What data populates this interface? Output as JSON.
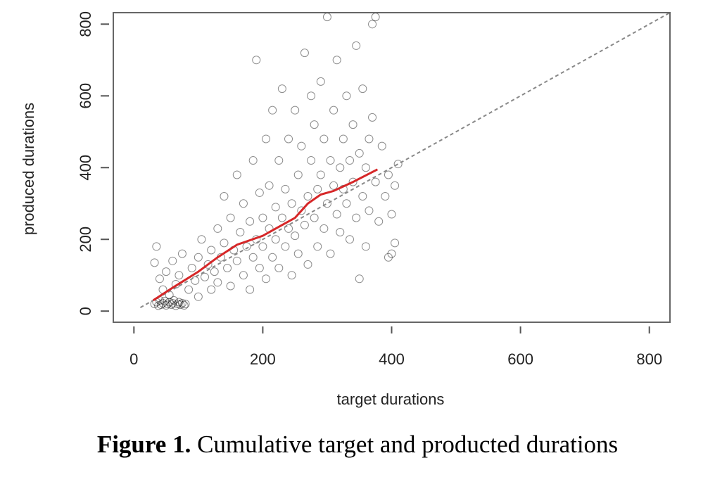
{
  "caption": {
    "label": "Figure 1.",
    "text": " Cumulative target and producted durations"
  },
  "chart_data": {
    "type": "scatter",
    "xlabel": "target durations",
    "ylabel": "produced durations",
    "xlim": [
      -32,
      832
    ],
    "ylim": [
      -31,
      832
    ],
    "xticks": [
      0,
      200,
      400,
      600,
      800
    ],
    "yticks": [
      0,
      200,
      400,
      600,
      800
    ],
    "grid": false,
    "colors": {
      "points": "#000000",
      "fit_line": "#d62728",
      "reference_line": "#888888"
    },
    "reference_line": {
      "type": "identity y=x",
      "x": [
        10,
        832
      ],
      "y": [
        10,
        832
      ],
      "style": "dashed"
    },
    "fit_line": {
      "x": [
        30,
        60,
        100,
        130,
        160,
        200,
        230,
        250,
        270,
        290,
        310,
        340,
        378
      ],
      "y": [
        30,
        65,
        110,
        150,
        185,
        210,
        240,
        260,
        300,
        325,
        335,
        360,
        395
      ]
    },
    "points": [
      [
        32,
        20
      ],
      [
        35,
        25
      ],
      [
        38,
        15
      ],
      [
        40,
        30
      ],
      [
        42,
        18
      ],
      [
        45,
        22
      ],
      [
        48,
        28
      ],
      [
        50,
        16
      ],
      [
        52,
        20
      ],
      [
        55,
        25
      ],
      [
        58,
        18
      ],
      [
        60,
        22
      ],
      [
        62,
        30
      ],
      [
        65,
        15
      ],
      [
        68,
        20
      ],
      [
        70,
        25
      ],
      [
        72,
        18
      ],
      [
        75,
        22
      ],
      [
        78,
        16
      ],
      [
        80,
        20
      ],
      [
        32,
        135
      ],
      [
        35,
        180
      ],
      [
        40,
        90
      ],
      [
        45,
        60
      ],
      [
        50,
        110
      ],
      [
        55,
        45
      ],
      [
        60,
        140
      ],
      [
        65,
        75
      ],
      [
        70,
        100
      ],
      [
        75,
        160
      ],
      [
        85,
        60
      ],
      [
        90,
        120
      ],
      [
        95,
        85
      ],
      [
        100,
        150
      ],
      [
        100,
        40
      ],
      [
        105,
        200
      ],
      [
        110,
        95
      ],
      [
        115,
        130
      ],
      [
        120,
        60
      ],
      [
        120,
        170
      ],
      [
        125,
        110
      ],
      [
        130,
        230
      ],
      [
        130,
        80
      ],
      [
        135,
        150
      ],
      [
        140,
        320
      ],
      [
        140,
        190
      ],
      [
        145,
        120
      ],
      [
        150,
        260
      ],
      [
        150,
        70
      ],
      [
        155,
        170
      ],
      [
        160,
        140
      ],
      [
        160,
        380
      ],
      [
        165,
        220
      ],
      [
        170,
        100
      ],
      [
        170,
        300
      ],
      [
        175,
        180
      ],
      [
        180,
        250
      ],
      [
        180,
        60
      ],
      [
        185,
        420
      ],
      [
        185,
        150
      ],
      [
        190,
        200
      ],
      [
        190,
        700
      ],
      [
        195,
        330
      ],
      [
        195,
        120
      ],
      [
        200,
        260
      ],
      [
        200,
        180
      ],
      [
        205,
        90
      ],
      [
        205,
        480
      ],
      [
        210,
        230
      ],
      [
        210,
        350
      ],
      [
        215,
        150
      ],
      [
        215,
        560
      ],
      [
        220,
        290
      ],
      [
        220,
        200
      ],
      [
        225,
        120
      ],
      [
        225,
        420
      ],
      [
        230,
        260
      ],
      [
        230,
        620
      ],
      [
        235,
        180
      ],
      [
        235,
        340
      ],
      [
        240,
        230
      ],
      [
        240,
        480
      ],
      [
        245,
        100
      ],
      [
        245,
        300
      ],
      [
        250,
        210
      ],
      [
        250,
        560
      ],
      [
        255,
        380
      ],
      [
        255,
        160
      ],
      [
        260,
        280
      ],
      [
        260,
        460
      ],
      [
        265,
        240
      ],
      [
        265,
        720
      ],
      [
        270,
        320
      ],
      [
        270,
        130
      ],
      [
        275,
        420
      ],
      [
        275,
        600
      ],
      [
        280,
        260
      ],
      [
        280,
        520
      ],
      [
        285,
        340
      ],
      [
        285,
        180
      ],
      [
        290,
        380
      ],
      [
        290,
        640
      ],
      [
        295,
        230
      ],
      [
        295,
        480
      ],
      [
        300,
        300
      ],
      [
        300,
        820
      ],
      [
        305,
        420
      ],
      [
        305,
        160
      ],
      [
        310,
        350
      ],
      [
        310,
        560
      ],
      [
        315,
        270
      ],
      [
        315,
        700
      ],
      [
        320,
        400
      ],
      [
        320,
        220
      ],
      [
        325,
        480
      ],
      [
        325,
        340
      ],
      [
        330,
        300
      ],
      [
        330,
        600
      ],
      [
        335,
        420
      ],
      [
        335,
        200
      ],
      [
        340,
        360
      ],
      [
        340,
        520
      ],
      [
        345,
        260
      ],
      [
        345,
        740
      ],
      [
        350,
        440
      ],
      [
        350,
        90
      ],
      [
        355,
        320
      ],
      [
        355,
        620
      ],
      [
        360,
        400
      ],
      [
        360,
        180
      ],
      [
        365,
        480
      ],
      [
        365,
        280
      ],
      [
        370,
        540
      ],
      [
        370,
        800
      ],
      [
        375,
        360
      ],
      [
        375,
        820
      ],
      [
        380,
        250
      ],
      [
        385,
        460
      ],
      [
        390,
        320
      ],
      [
        395,
        380
      ],
      [
        400,
        160
      ],
      [
        400,
        270
      ],
      [
        405,
        190
      ],
      [
        405,
        350
      ],
      [
        410,
        410
      ],
      [
        395,
        150
      ]
    ]
  }
}
